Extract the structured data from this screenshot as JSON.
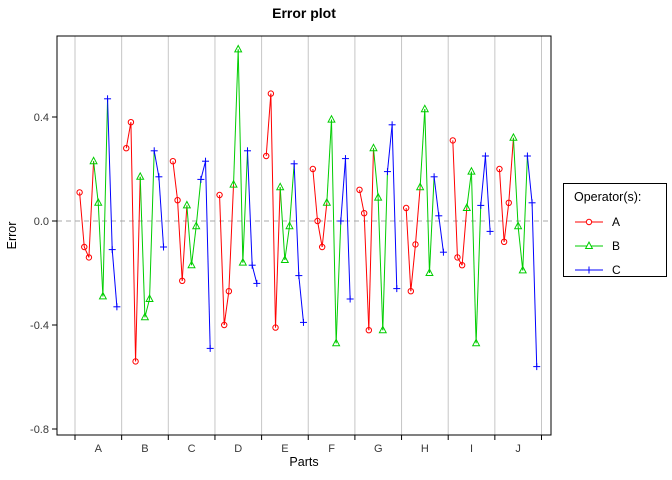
{
  "figure": {
    "title": "Error plot",
    "xlabel": "Parts",
    "ylabel": "Error"
  },
  "axes": {
    "y_tick_labels": [
      "0.4",
      "0.0",
      "-0.4",
      "-0.8"
    ],
    "y_tick_values": [
      0.4,
      0.0,
      -0.4,
      -0.8
    ],
    "x_tick_labels": [
      "A",
      "B",
      "C",
      "D",
      "E",
      "F",
      "G",
      "H",
      "I",
      "J"
    ]
  },
  "legend": {
    "title": "Operator(s):",
    "entries": [
      {
        "label": "A",
        "color": "#FF0000",
        "marker": "circle"
      },
      {
        "label": "B",
        "color": "#00CD00",
        "marker": "triangle"
      },
      {
        "label": "C",
        "color": "#0000FF",
        "marker": "plus"
      }
    ]
  },
  "chart_data": {
    "type": "line",
    "title": "Error plot",
    "xlabel": "Parts",
    "ylabel": "Error",
    "categories": [
      "A",
      "B",
      "C",
      "D",
      "E",
      "F",
      "G",
      "H",
      "I",
      "J"
    ],
    "ylim": [
      -0.82,
      0.71
    ],
    "yticks": [
      0.4,
      0.0,
      -0.4,
      -0.8
    ],
    "grid": "vertical gray separators at part boundaries; dashed gray horizontal line at y=0",
    "legend_position": "right",
    "trials_per_operator": 3,
    "note": "Within each part the 9 trial errors (3 per operator, order A,B,C) are joined into one polyline; segment takes the color of its starting operator",
    "series": [
      {
        "name": "A",
        "color": "#FF0000",
        "marker": "circle",
        "values_by_part": [
          [
            0.11,
            -0.1,
            -0.14
          ],
          [
            0.28,
            0.38,
            -0.54
          ],
          [
            0.23,
            0.08,
            -0.23
          ],
          [
            0.1,
            -0.4,
            -0.27
          ],
          [
            0.25,
            0.49,
            -0.41
          ],
          [
            0.2,
            0.0,
            -0.1
          ],
          [
            0.12,
            0.03,
            -0.42
          ],
          [
            0.05,
            -0.27,
            -0.09
          ],
          [
            0.31,
            -0.14,
            -0.17
          ],
          [
            0.2,
            -0.08,
            0.07
          ]
        ]
      },
      {
        "name": "B",
        "color": "#00CD00",
        "marker": "triangle",
        "values_by_part": [
          [
            0.23,
            0.07,
            -0.29
          ],
          [
            0.17,
            -0.37,
            -0.3
          ],
          [
            0.06,
            -0.17,
            -0.02
          ],
          [
            0.14,
            0.66,
            -0.16
          ],
          [
            0.13,
            -0.15,
            -0.02
          ],
          [
            0.07,
            0.39,
            -0.47
          ],
          [
            0.28,
            0.09,
            -0.42
          ],
          [
            0.13,
            0.43,
            -0.2
          ],
          [
            0.05,
            0.19,
            -0.47
          ],
          [
            0.32,
            -0.02,
            -0.19
          ]
        ]
      },
      {
        "name": "C",
        "color": "#0000FF",
        "marker": "plus",
        "values_by_part": [
          [
            0.47,
            -0.11,
            -0.33
          ],
          [
            0.27,
            0.17,
            -0.1
          ],
          [
            0.16,
            0.23,
            -0.49
          ],
          [
            0.27,
            -0.17,
            -0.24
          ],
          [
            0.22,
            -0.21,
            -0.39
          ],
          [
            0.0,
            0.24,
            -0.3
          ],
          [
            0.19,
            0.37,
            -0.26
          ],
          [
            0.17,
            0.02,
            -0.12
          ],
          [
            0.06,
            0.25,
            -0.04
          ],
          [
            0.25,
            0.07,
            -0.56
          ]
        ]
      }
    ]
  }
}
